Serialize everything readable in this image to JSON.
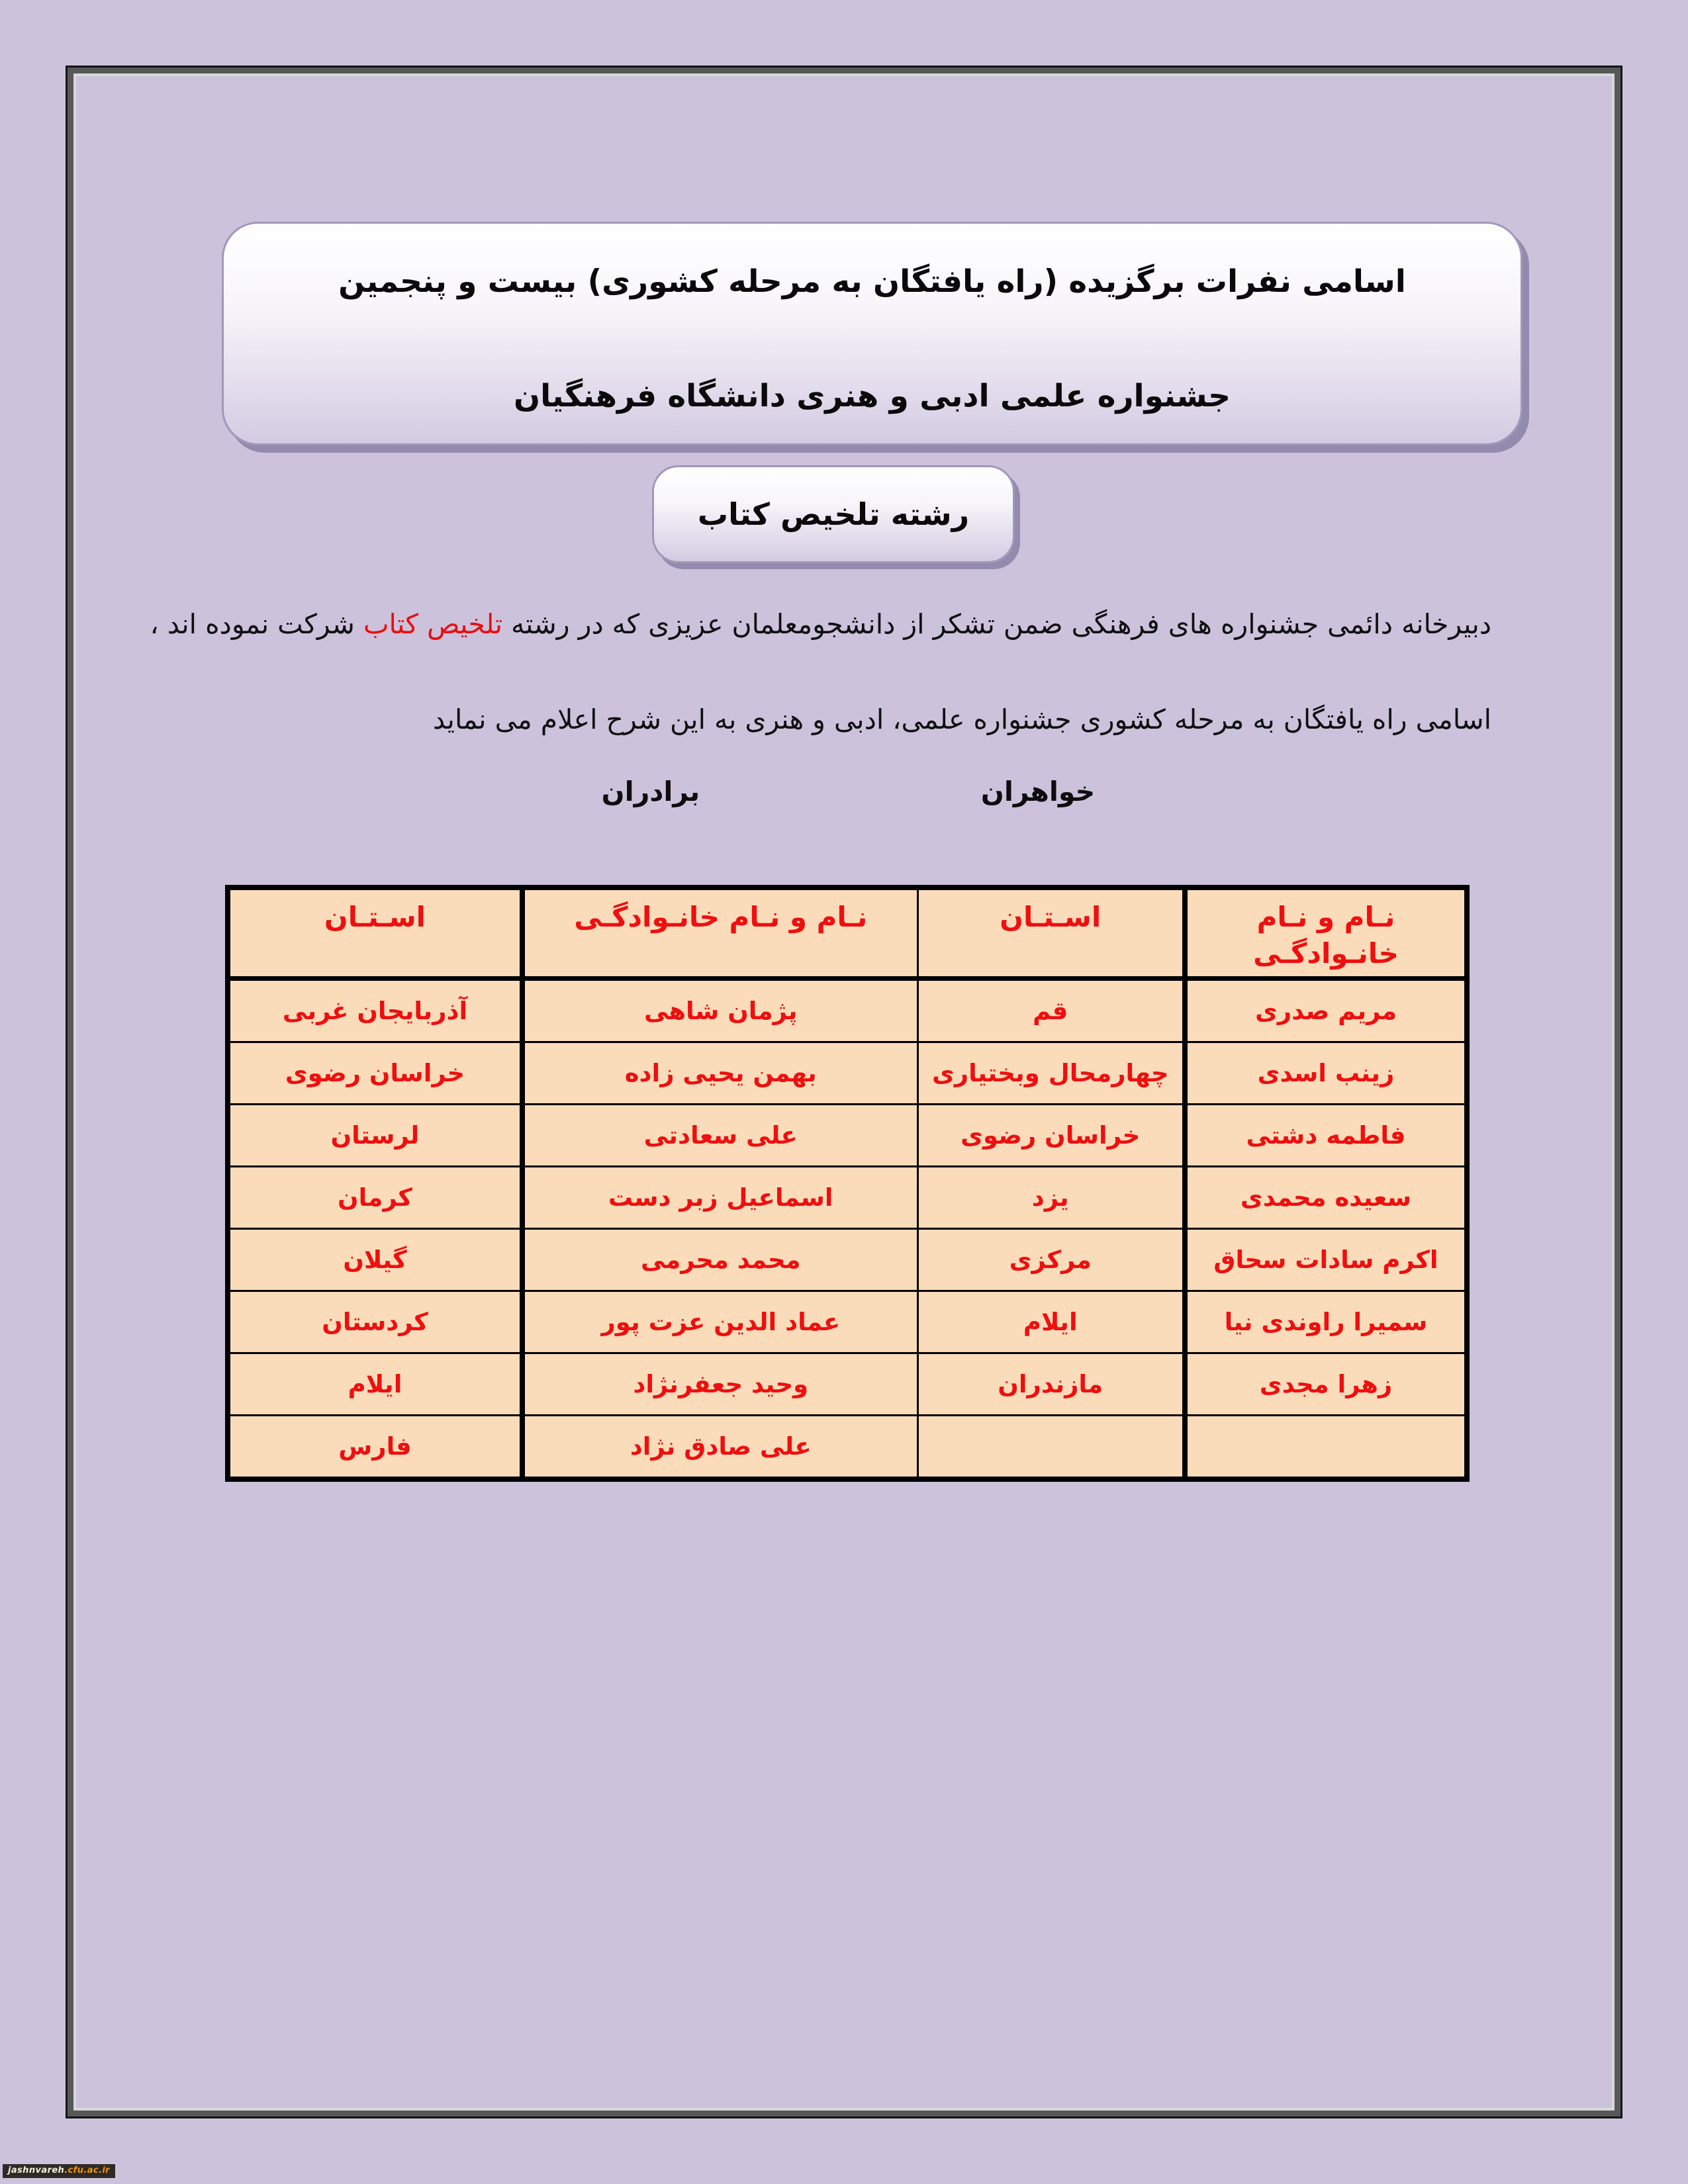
{
  "title": {
    "line1": "اسامی نفرات برگزیده (راه یافتگان به  مرحله کشوری) بیست و پنجمین",
    "line2": "جشنواره علمی ادبی و هنری دانشگاه فرهنگیان"
  },
  "field_badge": "رشته تلخیص کتاب",
  "intro": {
    "line1_pre": "دبیرخانه دائمی جشنواره های فرهنگی ضمن تشکر از دانشجومعلمان عزیزی که در رشته ",
    "line1_highlight": "تلخیص کتاب",
    "line1_post": "  شرکت نموده اند ،",
    "line2": "اسامی راه یافتگان به مرحله کشوری جشنواره علمی، ادبی و هنری به این شرح اعلام می نماید"
  },
  "group_labels": {
    "sisters": "خواهران",
    "brothers": "برادران"
  },
  "table": {
    "columns": [
      {
        "id": "sister-name",
        "label": "نـام و نـام خانـوادگـی"
      },
      {
        "id": "sister-province",
        "label": "اسـتـان"
      },
      {
        "id": "brother-name",
        "label": "نـام و نـام خانـوادگـی"
      },
      {
        "id": "brother-province",
        "label": "اسـتـان"
      }
    ],
    "rows": [
      [
        "مریم صدری",
        "قم",
        "پژمان شاهی",
        "آذربایجان غربی"
      ],
      [
        "زینب اسدی",
        "چهارمحال وبختیاری",
        "بهمن یحیی زاده",
        "خراسان رضوی"
      ],
      [
        "فاطمه دشتی",
        "خراسان رضوی",
        "علی سعادتی",
        "لرستان"
      ],
      [
        "سعیده محمدی",
        "یزد",
        "اسماعیل زبر دست",
        "کرمان"
      ],
      [
        "اکرم سادات سحاق",
        "مرکزی",
        "محمد محرمی",
        "گیلان"
      ],
      [
        "سمیرا راوندی نیا",
        "ایلام",
        "عماد الدین عزت پور",
        "کردستان"
      ],
      [
        "زهرا مجدی",
        "مازندران",
        "وحید جعفرنژاد",
        "ایلام"
      ],
      [
        "",
        "",
        "علی صادق نژاد",
        "فارس"
      ]
    ]
  },
  "watermark": {
    "prefix": "jashnvareh",
    "suffix": ".cfu.ac.ir"
  },
  "colors": {
    "page_background": "#ccc2dc",
    "frame_gray": "#585858",
    "cell_background": "#fbdcba",
    "table_text_red": "#ee0f0f",
    "highlight_red": "#e80f0f",
    "banner_border_purple": "#a296bb",
    "banner_shadow_purple": "#938aad",
    "watermark_bar": "#2e2b26",
    "watermark_orange": "#f1930c"
  }
}
